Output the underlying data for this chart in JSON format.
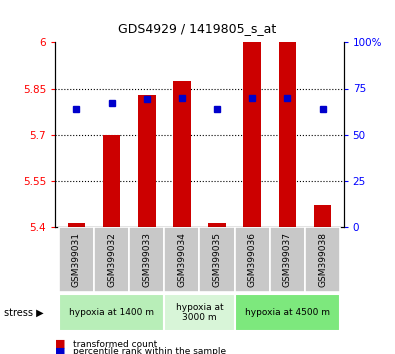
{
  "title": "GDS4929 / 1419805_s_at",
  "samples": [
    "GSM399031",
    "GSM399032",
    "GSM399033",
    "GSM399034",
    "GSM399035",
    "GSM399036",
    "GSM399037",
    "GSM399038"
  ],
  "red_values": [
    5.41,
    5.7,
    5.83,
    5.875,
    5.41,
    6.0,
    6.0,
    5.47
  ],
  "blue_values": [
    64,
    67,
    69.5,
    70,
    64,
    70,
    70,
    64
  ],
  "bar_bottom": 5.4,
  "ylim_left": [
    5.4,
    6.0
  ],
  "ylim_right": [
    0,
    100
  ],
  "yticks_left": [
    5.4,
    5.55,
    5.7,
    5.85,
    6.0
  ],
  "yticks_right": [
    0,
    25,
    50,
    75,
    100
  ],
  "ytick_labels_left": [
    "5.4",
    "5.55",
    "5.7",
    "5.85",
    "6"
  ],
  "ytick_labels_right": [
    "0",
    "25",
    "50",
    "75",
    "100%"
  ],
  "groups": [
    {
      "label": "hypoxia at 1400 m",
      "start": 0,
      "end": 3,
      "color": "#b8eeb8"
    },
    {
      "label": "hypoxia at\n3000 m",
      "start": 3,
      "end": 5,
      "color": "#d8f5d8"
    },
    {
      "label": "hypoxia at 4500 m",
      "start": 5,
      "end": 8,
      "color": "#7de87d"
    }
  ],
  "bar_color": "#cc0000",
  "dot_color": "#0000cc",
  "bar_width": 0.5,
  "legend_red": "transformed count",
  "legend_blue": "percentile rank within the sample",
  "grid_lines": [
    5.55,
    5.7,
    5.85
  ],
  "sample_bg": "#c8c8c8"
}
